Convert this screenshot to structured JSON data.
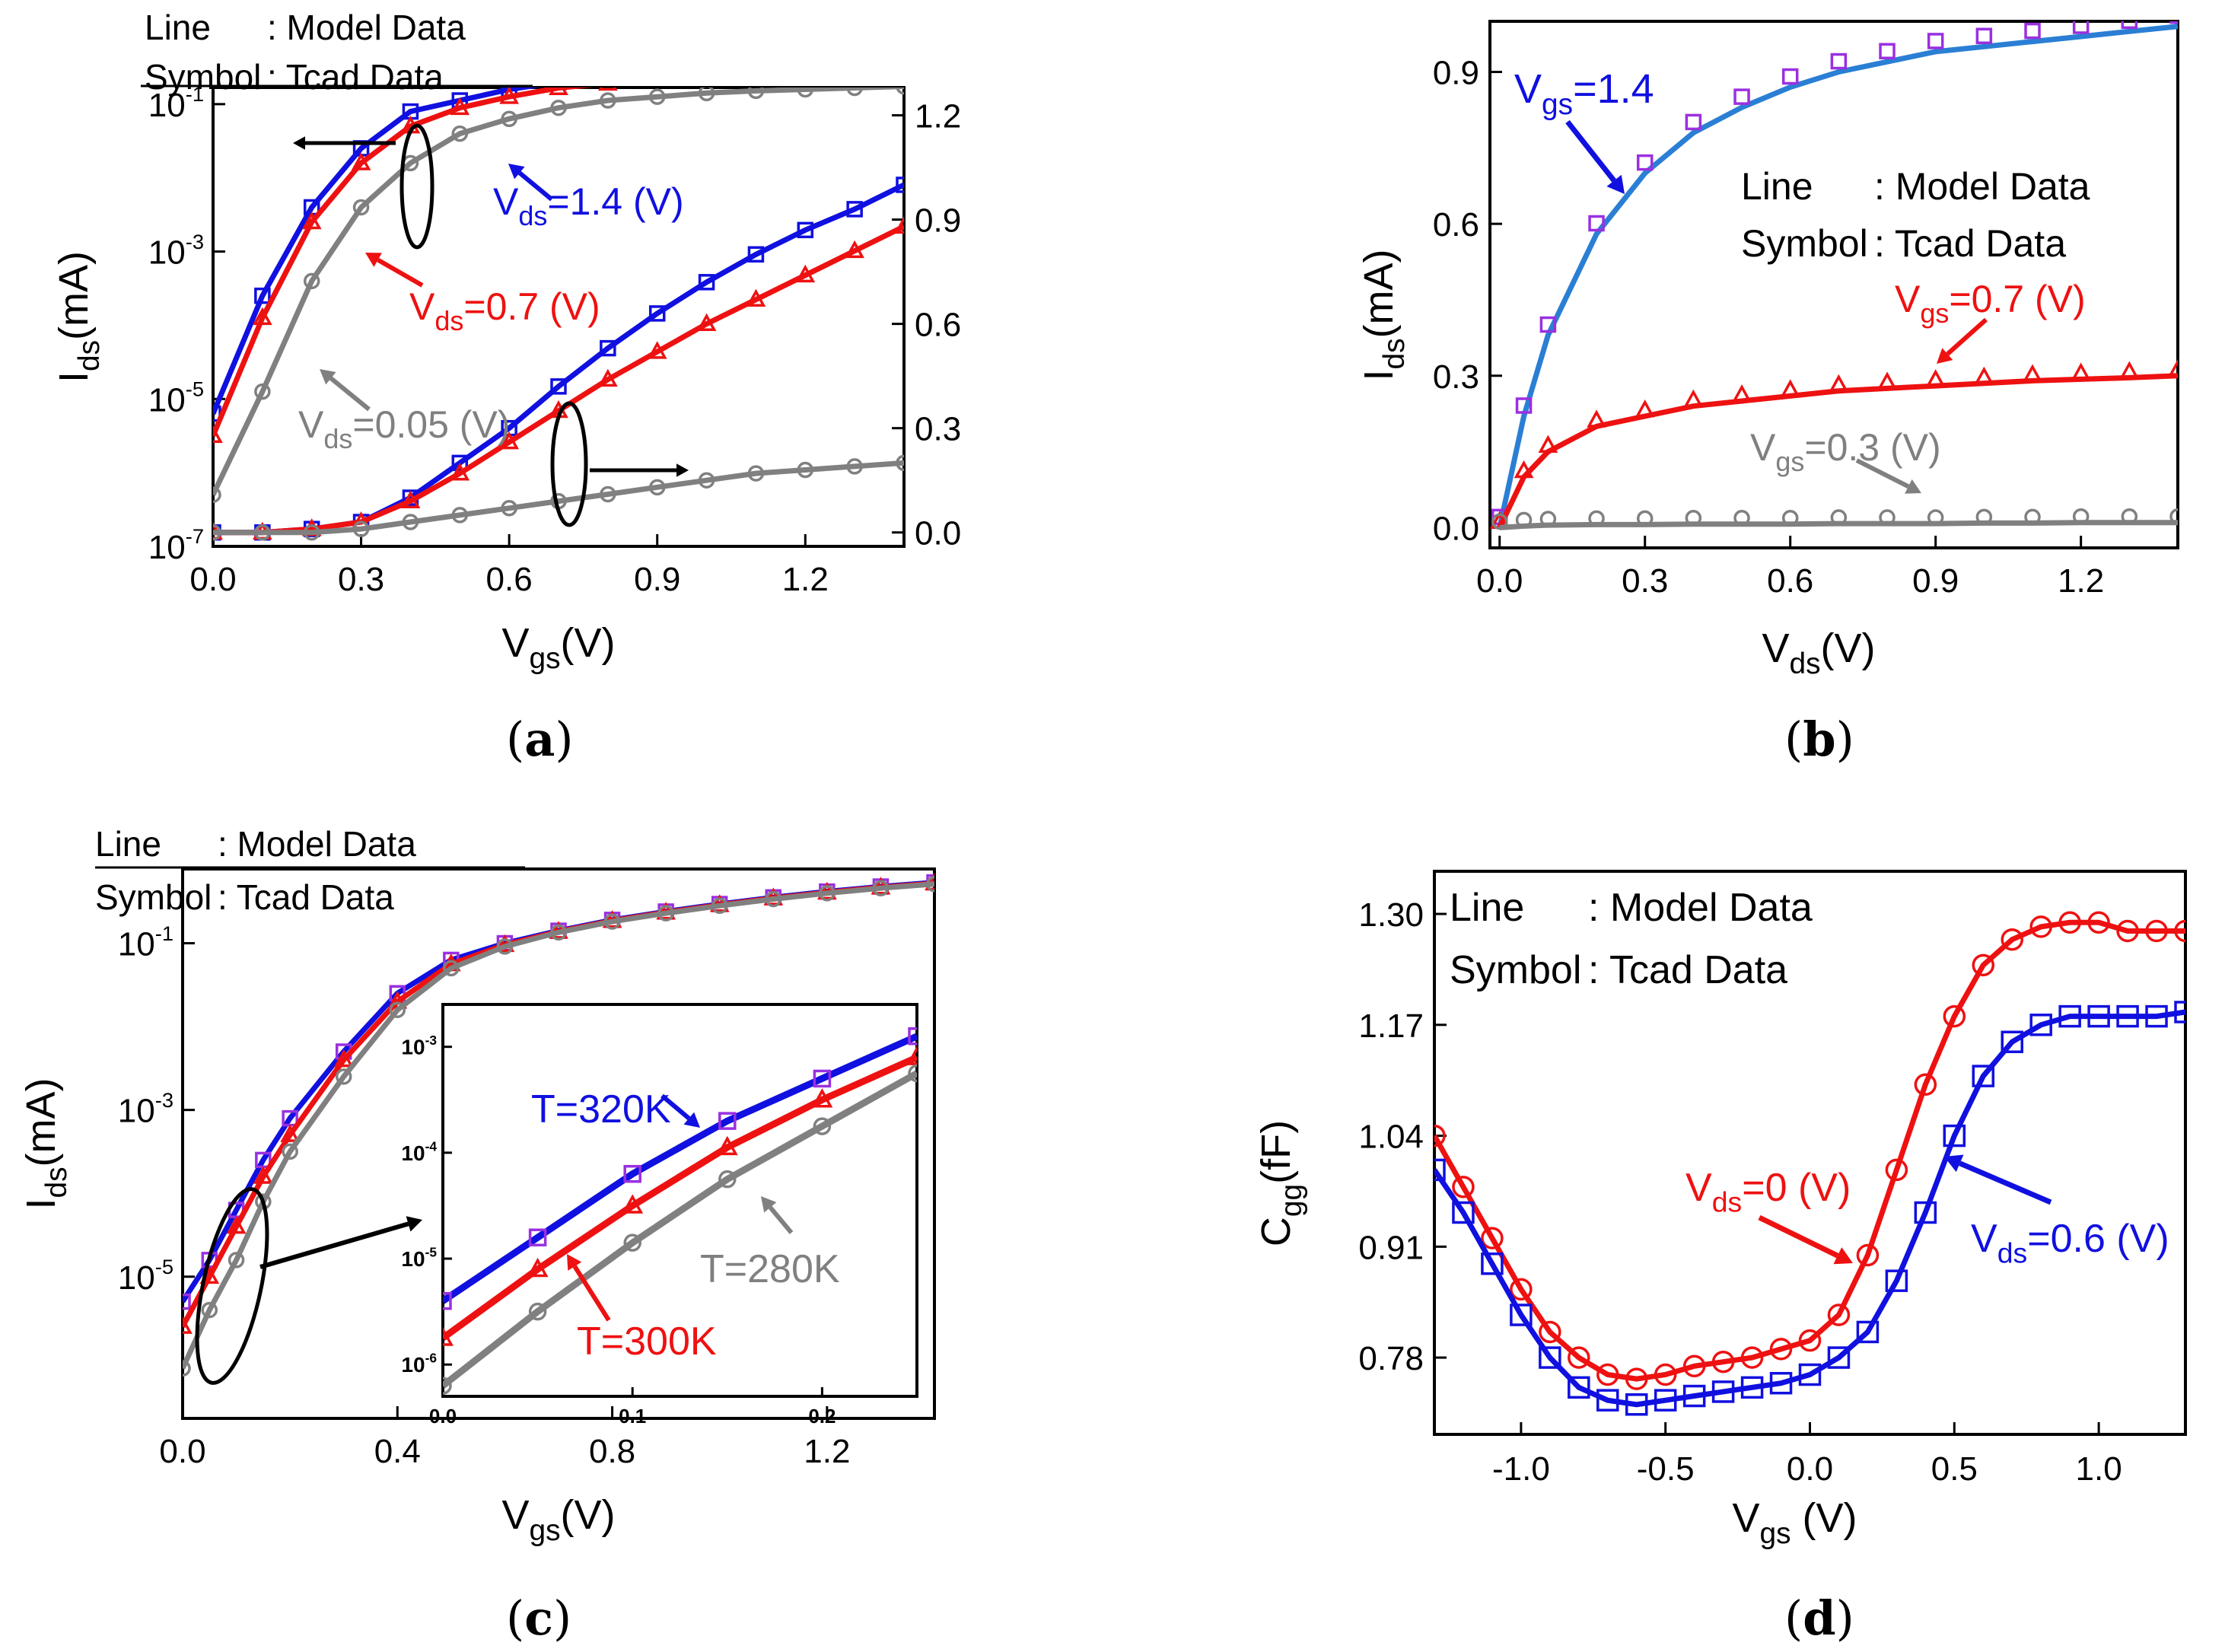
{
  "captions": [
    "a",
    "b",
    "c",
    "d"
  ],
  "legend_text": {
    "line_label": "Line",
    "line_value": ": Model Data",
    "symbol_label": "Symbol",
    "symbol_value": ": Tcad Data"
  },
  "chart_data": [
    {
      "panel": "a",
      "type": "line",
      "xlabel": "V_gs(V)",
      "ylabel": "I_ds(mA)",
      "xlim": [
        0.0,
        1.4
      ],
      "xticks": [
        "0.0",
        "0.3",
        "0.6",
        "0.9",
        "1.2"
      ],
      "y_scale": "log",
      "ylim_log10": [
        -7,
        0
      ],
      "yticks": [
        "10^-1",
        "10^-3",
        "10^-5",
        "10^-7"
      ],
      "y2label": "",
      "y2lim": [
        -0.04,
        1.28
      ],
      "y2ticks": [
        "0.0",
        "0.3",
        "0.6",
        "0.9",
        "1.2"
      ],
      "annotations": [
        {
          "text": "V_ds=1.4 (V)",
          "color": "#1010e0"
        },
        {
          "text": "V_ds=0.7 (V)",
          "color": "#ee1111"
        },
        {
          "text": "V_ds=0.05 (V)",
          "color": "#808080"
        }
      ],
      "x": [
        0.0,
        0.1,
        0.2,
        0.3,
        0.4,
        0.5,
        0.6,
        0.7,
        0.8,
        0.9,
        1.0,
        1.1,
        1.2,
        1.3,
        1.4
      ],
      "series": [
        {
          "color": "#1010e0",
          "marker": "square",
          "log_axis_log10": [
            -5.2,
            -3.6,
            -2.4,
            -1.6,
            -1.1,
            -0.95,
            -0.8,
            -0.7,
            -0.65,
            -0.6,
            -0.55,
            -0.52,
            -0.5,
            -0.47,
            -0.45
          ],
          "linear_axis": [
            0.0,
            0.0,
            0.01,
            0.03,
            0.1,
            0.2,
            0.3,
            0.42,
            0.53,
            0.63,
            0.72,
            0.8,
            0.87,
            0.93,
            1.0
          ]
        },
        {
          "color": "#ee1111",
          "marker": "triangle",
          "log_axis_log10": [
            -5.5,
            -3.9,
            -2.6,
            -1.8,
            -1.3,
            -1.05,
            -0.9,
            -0.78,
            -0.72,
            -0.66,
            -0.62,
            -0.58,
            -0.55,
            -0.52,
            -0.5
          ],
          "linear_axis": [
            0.0,
            0.0,
            0.01,
            0.03,
            0.09,
            0.17,
            0.26,
            0.35,
            0.44,
            0.52,
            0.6,
            0.67,
            0.74,
            0.81,
            0.88
          ]
        },
        {
          "color": "#808080",
          "marker": "circle",
          "log_axis_log10": [
            -6.3,
            -4.9,
            -3.4,
            -2.4,
            -1.8,
            -1.4,
            -1.2,
            -1.05,
            -0.95,
            -0.9,
            -0.85,
            -0.82,
            -0.8,
            -0.78,
            -0.76
          ],
          "linear_axis": [
            0.0,
            0.0,
            0.0,
            0.01,
            0.03,
            0.05,
            0.07,
            0.09,
            0.11,
            0.13,
            0.15,
            0.17,
            0.18,
            0.19,
            0.2
          ]
        }
      ]
    },
    {
      "panel": "b",
      "type": "line",
      "xlabel": "V_ds(V)",
      "ylabel": "I_ds(mA)",
      "xlim": [
        -0.02,
        1.4
      ],
      "ylim": [
        -0.04,
        1.0
      ],
      "xticks": [
        "0.0",
        "0.3",
        "0.6",
        "0.9",
        "1.2"
      ],
      "yticks": [
        "0.0",
        "0.3",
        "0.6",
        "0.9"
      ],
      "annotations": [
        {
          "text": "V_gs=1.4",
          "color": "#1010e0"
        },
        {
          "text": "V_gs=0.7 (V)",
          "color": "#ee1111"
        },
        {
          "text": "V_gs=0.3 (V)",
          "color": "#808080"
        }
      ],
      "x": [
        0.0,
        0.05,
        0.1,
        0.2,
        0.3,
        0.4,
        0.5,
        0.6,
        0.7,
        0.8,
        0.9,
        1.0,
        1.1,
        1.2,
        1.3,
        1.4
      ],
      "series": [
        {
          "color": "#2a7fd4",
          "marker_color": "#9a30e0",
          "marker": "square",
          "values": [
            0.0,
            0.22,
            0.38,
            0.58,
            0.7,
            0.78,
            0.83,
            0.87,
            0.9,
            0.92,
            0.94,
            0.95,
            0.96,
            0.97,
            0.98,
            0.99
          ]
        },
        {
          "color": "#ee1111",
          "marker": "triangle",
          "values": [
            0.0,
            0.1,
            0.15,
            0.2,
            0.22,
            0.24,
            0.25,
            0.26,
            0.27,
            0.275,
            0.28,
            0.285,
            0.29,
            0.293,
            0.296,
            0.3
          ]
        },
        {
          "color": "#808080",
          "marker": "circle",
          "values": [
            0.0,
            0.003,
            0.005,
            0.006,
            0.006,
            0.007,
            0.007,
            0.007,
            0.008,
            0.008,
            0.008,
            0.009,
            0.009,
            0.01,
            0.01,
            0.01
          ]
        }
      ]
    },
    {
      "panel": "c",
      "type": "line",
      "xlabel": "V_gs(V)",
      "ylabel": "I_ds(mA)",
      "xlim": [
        0.0,
        1.4
      ],
      "xticks": [
        "0.0",
        "0.4",
        "0.8",
        "1.2"
      ],
      "y_scale": "log",
      "ylim_log10": [
        -6.7,
        0
      ],
      "yticks": [
        "10^-1",
        "10^-3",
        "10^-5"
      ],
      "x": [
        0.0,
        0.05,
        0.1,
        0.15,
        0.2,
        0.3,
        0.4,
        0.5,
        0.6,
        0.7,
        0.8,
        0.9,
        1.0,
        1.1,
        1.2,
        1.3,
        1.4
      ],
      "series": [
        {
          "label": "T=320K",
          "color": "#1010e0",
          "marker_color": "#9a30e0",
          "marker": "square",
          "log10": [
            -5.3,
            -4.8,
            -4.2,
            -3.6,
            -3.1,
            -2.3,
            -1.6,
            -1.2,
            -1.0,
            -0.85,
            -0.72,
            -0.62,
            -0.53,
            -0.45,
            -0.38,
            -0.32,
            -0.27
          ]
        },
        {
          "label": "T=300K",
          "color": "#ee1111",
          "marker": "triangle",
          "log10": [
            -5.6,
            -5.0,
            -4.4,
            -3.8,
            -3.3,
            -2.4,
            -1.7,
            -1.25,
            -1.02,
            -0.86,
            -0.73,
            -0.63,
            -0.54,
            -0.46,
            -0.39,
            -0.33,
            -0.28
          ]
        },
        {
          "label": "T=280K",
          "color": "#808080",
          "marker": "circle",
          "log10": [
            -6.1,
            -5.4,
            -4.8,
            -4.1,
            -3.5,
            -2.6,
            -1.8,
            -1.3,
            -1.04,
            -0.87,
            -0.74,
            -0.64,
            -0.55,
            -0.47,
            -0.4,
            -0.34,
            -0.29
          ]
        }
      ],
      "inset": {
        "xlim": [
          0.0,
          0.25
        ],
        "xticks": [
          "0.0",
          "0.1",
          "0.2"
        ],
        "ylim_log10": [
          -6.3,
          -2.6
        ],
        "yticks": [
          "10^-3",
          "10^-4",
          "10^-5",
          "10^-6"
        ],
        "x": [
          0.0,
          0.05,
          0.1,
          0.15,
          0.2,
          0.25
        ],
        "series": [
          {
            "label": "T=320K",
            "log10": [
              -5.4,
              -4.8,
              -4.2,
              -3.7,
              -3.3,
              -2.9
            ]
          },
          {
            "label": "T=300K",
            "log10": [
              -5.75,
              -5.1,
              -4.5,
              -3.95,
              -3.5,
              -3.1
            ]
          },
          {
            "label": "T=280K",
            "log10": [
              -6.2,
              -5.5,
              -4.85,
              -4.25,
              -3.75,
              -3.25
            ]
          }
        ]
      }
    },
    {
      "panel": "d",
      "type": "line",
      "xlabel": "V_gs (V)",
      "ylabel": "C_gg(fF)",
      "xlim": [
        -1.3,
        1.3
      ],
      "ylim": [
        0.69,
        1.35
      ],
      "xticks": [
        "-1.0",
        "-0.5",
        "0.0",
        "0.5",
        "1.0"
      ],
      "yticks": [
        "1.30",
        "1.17",
        "1.04",
        "0.91",
        "0.78"
      ],
      "annotations": [
        {
          "text": "V_ds=0 (V)",
          "color": "#ee1111"
        },
        {
          "text": "V_ds=0.6 (V)",
          "color": "#1010e0"
        }
      ],
      "x": [
        -1.3,
        -1.2,
        -1.1,
        -1.0,
        -0.9,
        -0.8,
        -0.7,
        -0.6,
        -0.5,
        -0.4,
        -0.3,
        -0.2,
        -0.1,
        0.0,
        0.1,
        0.2,
        0.3,
        0.4,
        0.5,
        0.6,
        0.7,
        0.8,
        0.9,
        1.0,
        1.1,
        1.2,
        1.3
      ],
      "series": [
        {
          "color": "#ee1111",
          "marker": "circle",
          "values": [
            1.04,
            0.98,
            0.92,
            0.86,
            0.81,
            0.78,
            0.76,
            0.755,
            0.76,
            0.77,
            0.775,
            0.78,
            0.79,
            0.8,
            0.83,
            0.9,
            1.0,
            1.1,
            1.18,
            1.24,
            1.27,
            1.285,
            1.29,
            1.29,
            1.28,
            1.28,
            1.28
          ]
        },
        {
          "color": "#1010e0",
          "marker": "square",
          "values": [
            1.0,
            0.95,
            0.89,
            0.83,
            0.78,
            0.745,
            0.73,
            0.725,
            0.73,
            0.735,
            0.74,
            0.745,
            0.75,
            0.76,
            0.78,
            0.81,
            0.87,
            0.95,
            1.04,
            1.11,
            1.15,
            1.17,
            1.18,
            1.18,
            1.18,
            1.18,
            1.185
          ]
        }
      ]
    }
  ]
}
